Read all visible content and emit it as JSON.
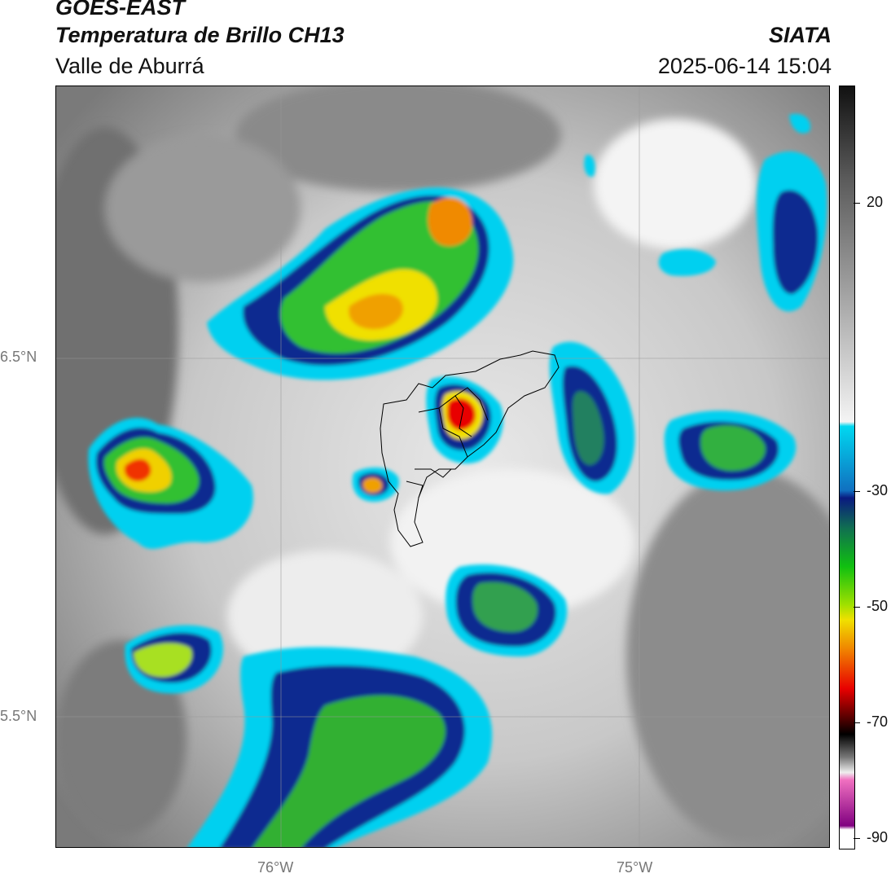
{
  "header": {
    "satellite": "GOES-EAST",
    "product": "Temperatura de Brillo CH13",
    "region": "Valle de Aburrá",
    "organization": "SIATA",
    "datetime": "2025-06-14 15:04"
  },
  "axes": {
    "lat_labels": [
      "6.5°N",
      "5.5°N"
    ],
    "lon_labels": [
      "76°W",
      "75°W"
    ]
  },
  "colorbar": {
    "tick_labels": [
      "20",
      "-30",
      "-50",
      "-70",
      "-90"
    ]
  }
}
